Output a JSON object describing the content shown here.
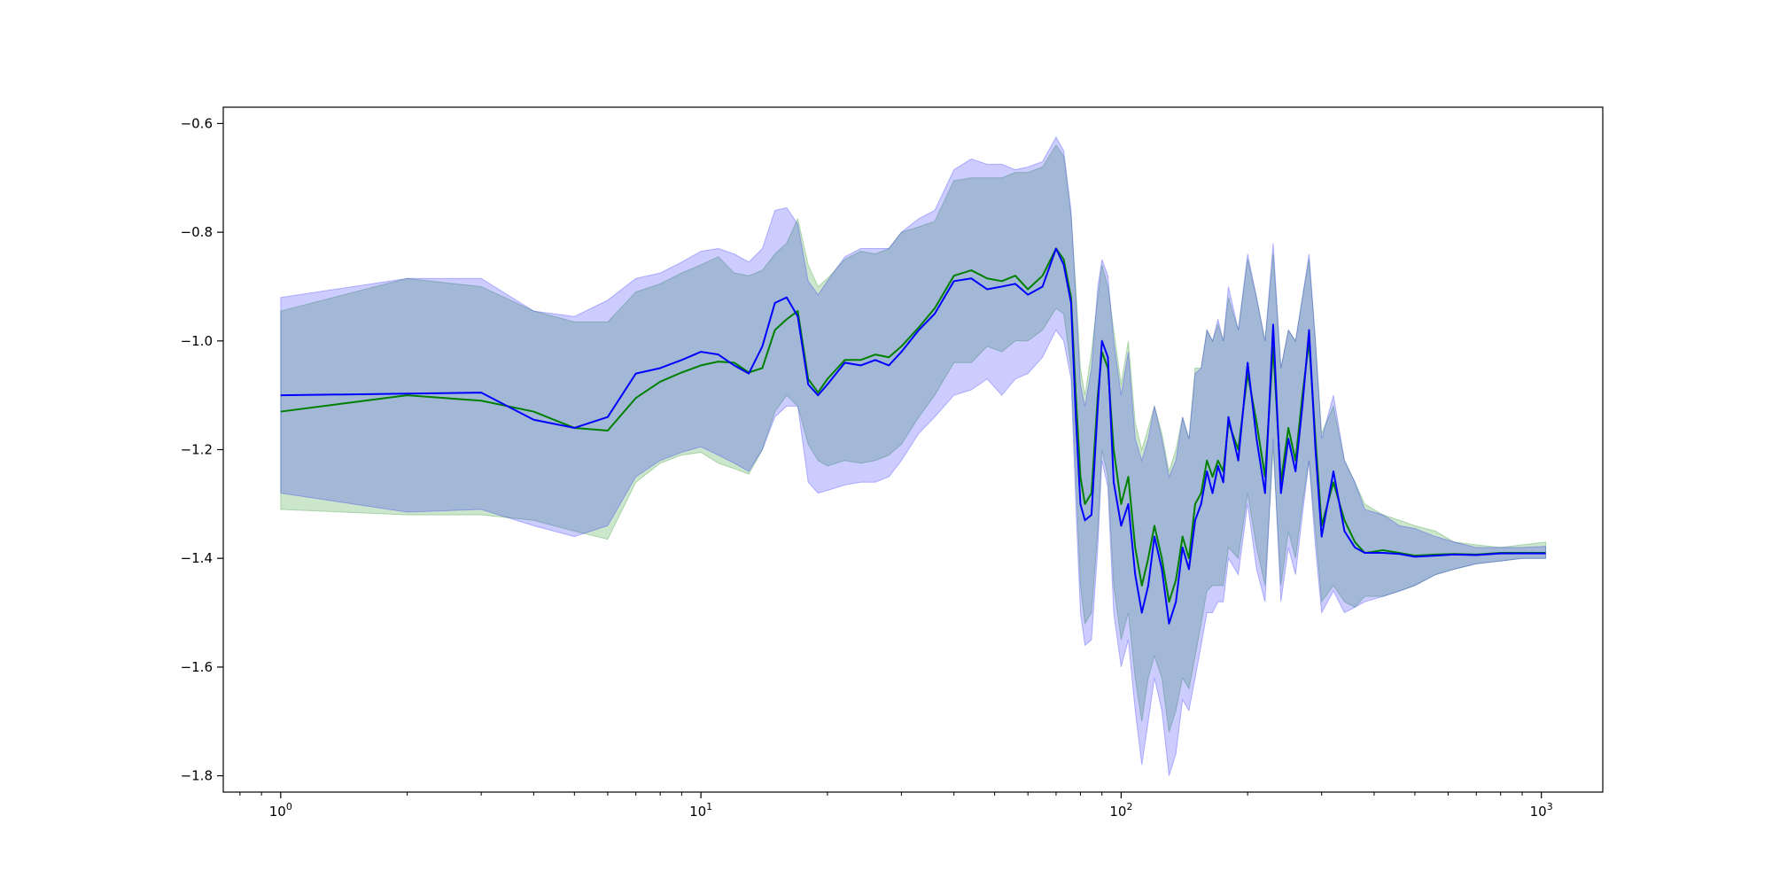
{
  "chart_data": {
    "type": "line",
    "title": "",
    "xlabel": "",
    "ylabel": "",
    "xscale": "log",
    "xlim": [
      0.73,
      1400
    ],
    "ylim": [
      -1.83,
      -0.57
    ],
    "grid": false,
    "legend": "none",
    "x_ticks": [
      {
        "value": 1,
        "base": "10",
        "exp": "0"
      },
      {
        "value": 10,
        "base": "10",
        "exp": "1"
      },
      {
        "value": 100,
        "base": "10",
        "exp": "2"
      },
      {
        "value": 1000,
        "base": "10",
        "exp": "3"
      }
    ],
    "y_ticks": [
      {
        "value": -0.6,
        "label": "−0.6"
      },
      {
        "value": -0.8,
        "label": "−0.8"
      },
      {
        "value": -1.0,
        "label": "−1.0"
      },
      {
        "value": -1.2,
        "label": "−1.2"
      },
      {
        "value": -1.4,
        "label": "−1.4"
      },
      {
        "value": -1.6,
        "label": "−1.6"
      },
      {
        "value": -1.8,
        "label": "−1.8"
      }
    ],
    "series": [
      {
        "color": "#008000",
        "band_color": "#008000",
        "band_opacity": 0.2,
        "points": [
          [
            1,
            -1.13,
            -1.31,
            -0.945
          ],
          [
            2,
            -1.1,
            -1.32,
            -0.885
          ],
          [
            3,
            -1.11,
            -1.32,
            -0.9
          ],
          [
            4,
            -1.13,
            -1.33,
            -0.945
          ],
          [
            5,
            -1.16,
            -1.35,
            -0.965
          ],
          [
            6,
            -1.165,
            -1.365,
            -0.965
          ],
          [
            7,
            -1.105,
            -1.26,
            -0.91
          ],
          [
            8,
            -1.075,
            -1.225,
            -0.895
          ],
          [
            9,
            -1.058,
            -1.21,
            -0.875
          ],
          [
            10,
            -1.045,
            -1.205,
            -0.86
          ],
          [
            11,
            -1.038,
            -1.225,
            -0.845
          ],
          [
            12,
            -1.04,
            -1.235,
            -0.875
          ],
          [
            13,
            -1.058,
            -1.245,
            -0.88
          ],
          [
            14,
            -1.05,
            -1.2,
            -0.87
          ],
          [
            15,
            -0.98,
            -1.13,
            -0.84
          ],
          [
            16,
            -0.96,
            -1.1,
            -0.82
          ],
          [
            17,
            -0.945,
            -1.12,
            -0.775
          ],
          [
            18,
            -1.07,
            -1.19,
            -0.86
          ],
          [
            19,
            -1.095,
            -1.22,
            -0.9
          ],
          [
            20,
            -1.07,
            -1.23,
            -0.885
          ],
          [
            22,
            -1.035,
            -1.22,
            -0.85
          ],
          [
            24,
            -1.035,
            -1.225,
            -0.835
          ],
          [
            26,
            -1.025,
            -1.22,
            -0.84
          ],
          [
            28,
            -1.03,
            -1.21,
            -0.83
          ],
          [
            30,
            -1.01,
            -1.19,
            -0.8
          ],
          [
            33,
            -0.975,
            -1.14,
            -0.79
          ],
          [
            36,
            -0.94,
            -1.1,
            -0.78
          ],
          [
            40,
            -0.88,
            -1.04,
            -0.705
          ],
          [
            44,
            -0.87,
            -1.04,
            -0.7
          ],
          [
            48,
            -0.885,
            -1.01,
            -0.7
          ],
          [
            52,
            -0.89,
            -1.02,
            -0.7
          ],
          [
            56,
            -0.88,
            -1.0,
            -0.69
          ],
          [
            60,
            -0.905,
            -1.0,
            -0.69
          ],
          [
            65,
            -0.88,
            -0.98,
            -0.68
          ],
          [
            70,
            -0.83,
            -0.94,
            -0.64
          ],
          [
            73,
            -0.85,
            -0.95,
            -0.66
          ],
          [
            76,
            -0.92,
            -1.05,
            -0.77
          ],
          [
            78,
            -1.1,
            -1.25,
            -0.9
          ],
          [
            80,
            -1.25,
            -1.45,
            -1.05
          ],
          [
            82,
            -1.3,
            -1.52,
            -1.1
          ],
          [
            85,
            -1.28,
            -1.5,
            -1.02
          ],
          [
            88,
            -1.1,
            -1.35,
            -0.92
          ],
          [
            90,
            -1.02,
            -1.2,
            -0.86
          ],
          [
            93,
            -1.05,
            -1.25,
            -0.9
          ],
          [
            96,
            -1.2,
            -1.45,
            -0.98
          ],
          [
            100,
            -1.3,
            -1.55,
            -1.08
          ],
          [
            104,
            -1.25,
            -1.5,
            -1.0
          ],
          [
            108,
            -1.38,
            -1.62,
            -1.15
          ],
          [
            112,
            -1.45,
            -1.7,
            -1.2
          ],
          [
            116,
            -1.4,
            -1.62,
            -1.16
          ],
          [
            120,
            -1.34,
            -1.58,
            -1.12
          ],
          [
            125,
            -1.4,
            -1.62,
            -1.17
          ],
          [
            130,
            -1.48,
            -1.72,
            -1.24
          ],
          [
            135,
            -1.44,
            -1.68,
            -1.2
          ],
          [
            140,
            -1.36,
            -1.62,
            -1.14
          ],
          [
            145,
            -1.4,
            -1.64,
            -1.18
          ],
          [
            150,
            -1.3,
            -1.58,
            -1.05
          ],
          [
            155,
            -1.28,
            -1.52,
            -1.05
          ],
          [
            160,
            -1.22,
            -1.46,
            -0.98
          ],
          [
            165,
            -1.25,
            -1.45,
            -1.0
          ],
          [
            170,
            -1.22,
            -1.45,
            -0.97
          ],
          [
            175,
            -1.24,
            -1.45,
            -1.0
          ],
          [
            180,
            -1.15,
            -1.38,
            -0.92
          ],
          [
            190,
            -1.2,
            -1.4,
            -0.98
          ],
          [
            200,
            -1.06,
            -1.28,
            -0.85
          ],
          [
            210,
            -1.15,
            -1.38,
            -0.92
          ],
          [
            220,
            -1.25,
            -1.45,
            -1.0
          ],
          [
            230,
            -1.01,
            -1.2,
            -0.84
          ],
          [
            240,
            -1.26,
            -1.45,
            -1.05
          ],
          [
            250,
            -1.16,
            -1.35,
            -0.98
          ],
          [
            260,
            -1.22,
            -1.4,
            -1.0
          ],
          [
            270,
            -1.1,
            -1.3,
            -0.92
          ],
          [
            280,
            -1.0,
            -1.22,
            -0.85
          ],
          [
            290,
            -1.18,
            -1.35,
            -1.0
          ],
          [
            300,
            -1.34,
            -1.48,
            -1.17
          ],
          [
            320,
            -1.26,
            -1.45,
            -1.12
          ],
          [
            340,
            -1.33,
            -1.48,
            -1.22
          ],
          [
            360,
            -1.37,
            -1.49,
            -1.26
          ],
          [
            380,
            -1.39,
            -1.47,
            -1.3
          ],
          [
            420,
            -1.385,
            -1.47,
            -1.32
          ],
          [
            460,
            -1.39,
            -1.46,
            -1.33
          ],
          [
            500,
            -1.395,
            -1.45,
            -1.34
          ],
          [
            560,
            -1.393,
            -1.43,
            -1.35
          ],
          [
            620,
            -1.392,
            -1.42,
            -1.37
          ],
          [
            700,
            -1.393,
            -1.41,
            -1.375
          ],
          [
            800,
            -1.39,
            -1.405,
            -1.38
          ],
          [
            900,
            -1.39,
            -1.4,
            -1.375
          ],
          [
            1024,
            -1.39,
            -1.4,
            -1.37
          ]
        ]
      },
      {
        "color": "#0000ff",
        "band_color": "#0000ff",
        "band_opacity": 0.2,
        "points": [
          [
            1,
            -1.1,
            -1.28,
            -0.92
          ],
          [
            2,
            -1.097,
            -1.315,
            -0.885
          ],
          [
            3,
            -1.095,
            -1.31,
            -0.885
          ],
          [
            4,
            -1.145,
            -1.34,
            -0.945
          ],
          [
            5,
            -1.16,
            -1.36,
            -0.955
          ],
          [
            6,
            -1.14,
            -1.34,
            -0.925
          ],
          [
            7,
            -1.06,
            -1.25,
            -0.885
          ],
          [
            8,
            -1.05,
            -1.22,
            -0.875
          ],
          [
            9,
            -1.035,
            -1.205,
            -0.855
          ],
          [
            10,
            -1.02,
            -1.195,
            -0.835
          ],
          [
            11,
            -1.025,
            -1.21,
            -0.83
          ],
          [
            12,
            -1.045,
            -1.225,
            -0.84
          ],
          [
            13,
            -1.06,
            -1.24,
            -0.855
          ],
          [
            14,
            -1.01,
            -1.2,
            -0.83
          ],
          [
            15,
            -0.93,
            -1.14,
            -0.76
          ],
          [
            16,
            -0.92,
            -1.12,
            -0.755
          ],
          [
            17,
            -0.955,
            -1.12,
            -0.785
          ],
          [
            18,
            -1.08,
            -1.26,
            -0.89
          ],
          [
            19,
            -1.1,
            -1.28,
            -0.915
          ],
          [
            20,
            -1.08,
            -1.275,
            -0.89
          ],
          [
            22,
            -1.04,
            -1.265,
            -0.845
          ],
          [
            24,
            -1.045,
            -1.26,
            -0.83
          ],
          [
            26,
            -1.035,
            -1.26,
            -0.83
          ],
          [
            28,
            -1.045,
            -1.25,
            -0.83
          ],
          [
            30,
            -1.02,
            -1.22,
            -0.8
          ],
          [
            33,
            -0.98,
            -1.17,
            -0.775
          ],
          [
            36,
            -0.95,
            -1.14,
            -0.76
          ],
          [
            40,
            -0.89,
            -1.1,
            -0.685
          ],
          [
            44,
            -0.885,
            -1.09,
            -0.665
          ],
          [
            48,
            -0.905,
            -1.07,
            -0.675
          ],
          [
            52,
            -0.9,
            -1.1,
            -0.675
          ],
          [
            56,
            -0.895,
            -1.07,
            -0.685
          ],
          [
            60,
            -0.915,
            -1.06,
            -0.68
          ],
          [
            65,
            -0.9,
            -1.03,
            -0.67
          ],
          [
            70,
            -0.83,
            -0.98,
            -0.625
          ],
          [
            73,
            -0.86,
            -1.0,
            -0.65
          ],
          [
            76,
            -0.93,
            -1.07,
            -0.76
          ],
          [
            78,
            -1.14,
            -1.3,
            -0.92
          ],
          [
            80,
            -1.3,
            -1.5,
            -1.08
          ],
          [
            82,
            -1.33,
            -1.56,
            -1.12
          ],
          [
            85,
            -1.32,
            -1.55,
            -1.05
          ],
          [
            88,
            -1.12,
            -1.38,
            -0.9
          ],
          [
            90,
            -1.0,
            -1.22,
            -0.85
          ],
          [
            93,
            -1.03,
            -1.27,
            -0.88
          ],
          [
            96,
            -1.26,
            -1.5,
            -1.0
          ],
          [
            100,
            -1.34,
            -1.6,
            -1.1
          ],
          [
            104,
            -1.3,
            -1.55,
            -1.02
          ],
          [
            108,
            -1.43,
            -1.68,
            -1.18
          ],
          [
            112,
            -1.5,
            -1.78,
            -1.22
          ],
          [
            116,
            -1.45,
            -1.7,
            -1.18
          ],
          [
            120,
            -1.36,
            -1.62,
            -1.12
          ],
          [
            125,
            -1.42,
            -1.68,
            -1.18
          ],
          [
            130,
            -1.52,
            -1.8,
            -1.25
          ],
          [
            135,
            -1.48,
            -1.76,
            -1.22
          ],
          [
            140,
            -1.38,
            -1.66,
            -1.14
          ],
          [
            145,
            -1.42,
            -1.68,
            -1.18
          ],
          [
            150,
            -1.33,
            -1.62,
            -1.06
          ],
          [
            155,
            -1.3,
            -1.56,
            -1.05
          ],
          [
            160,
            -1.24,
            -1.5,
            -0.98
          ],
          [
            165,
            -1.28,
            -1.5,
            -1.0
          ],
          [
            170,
            -1.23,
            -1.48,
            -0.96
          ],
          [
            175,
            -1.26,
            -1.48,
            -1.0
          ],
          [
            180,
            -1.14,
            -1.4,
            -0.9
          ],
          [
            190,
            -1.22,
            -1.43,
            -0.98
          ],
          [
            200,
            -1.04,
            -1.3,
            -0.84
          ],
          [
            210,
            -1.18,
            -1.42,
            -0.92
          ],
          [
            220,
            -1.28,
            -1.48,
            -1.0
          ],
          [
            230,
            -0.97,
            -1.18,
            -0.82
          ],
          [
            240,
            -1.28,
            -1.48,
            -1.05
          ],
          [
            250,
            -1.18,
            -1.38,
            -0.98
          ],
          [
            260,
            -1.24,
            -1.43,
            -1.0
          ],
          [
            270,
            -1.12,
            -1.32,
            -0.92
          ],
          [
            280,
            -0.98,
            -1.22,
            -0.84
          ],
          [
            290,
            -1.2,
            -1.38,
            -1.0
          ],
          [
            300,
            -1.36,
            -1.5,
            -1.18
          ],
          [
            320,
            -1.24,
            -1.46,
            -1.1
          ],
          [
            340,
            -1.35,
            -1.5,
            -1.22
          ],
          [
            360,
            -1.38,
            -1.49,
            -1.26
          ],
          [
            380,
            -1.39,
            -1.48,
            -1.31
          ],
          [
            420,
            -1.39,
            -1.47,
            -1.32
          ],
          [
            460,
            -1.392,
            -1.46,
            -1.34
          ],
          [
            500,
            -1.397,
            -1.45,
            -1.345
          ],
          [
            560,
            -1.395,
            -1.43,
            -1.36
          ],
          [
            620,
            -1.393,
            -1.42,
            -1.37
          ],
          [
            700,
            -1.394,
            -1.41,
            -1.38
          ],
          [
            800,
            -1.391,
            -1.405,
            -1.38
          ],
          [
            900,
            -1.391,
            -1.4,
            -1.38
          ],
          [
            1024,
            -1.391,
            -1.4,
            -1.378
          ]
        ]
      }
    ]
  }
}
